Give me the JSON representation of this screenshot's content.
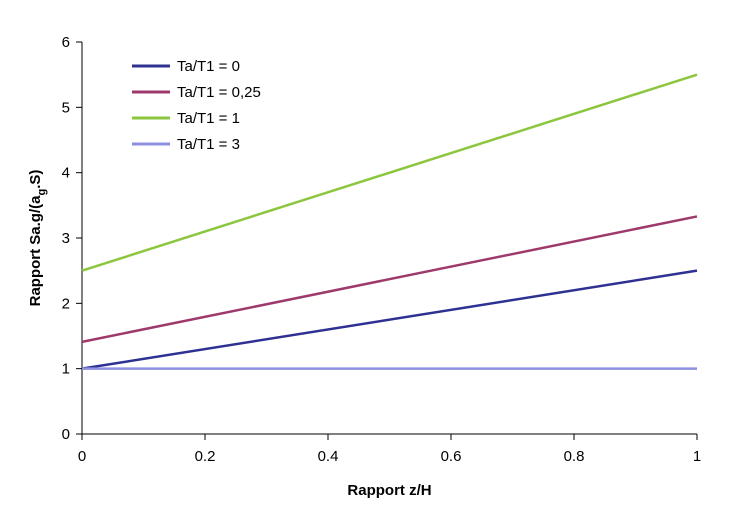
{
  "chart_data": {
    "type": "line",
    "title": "",
    "xlabel": "Rapport z/H",
    "ylabel_parts": {
      "prefix": "Rapport Sa.g/(a",
      "subscript": "g",
      "suffix": ".S)"
    },
    "xlim": [
      0,
      1
    ],
    "ylim": [
      0,
      6
    ],
    "xticks": [
      0,
      0.2,
      0.4,
      0.6,
      0.8,
      1
    ],
    "xtick_labels": [
      "0",
      "0.2",
      "0.4",
      "0.6",
      "0.8",
      "1"
    ],
    "yticks": [
      0,
      1,
      2,
      3,
      4,
      5,
      6
    ],
    "ytick_labels": [
      "0",
      "1",
      "2",
      "3",
      "4",
      "5",
      "6"
    ],
    "grid": false,
    "legend_position": "top-left",
    "series": [
      {
        "name": "Ta/T1 = 0",
        "color": "#2e3192",
        "x": [
          0,
          1
        ],
        "y": [
          1.0,
          2.5
        ]
      },
      {
        "name": "Ta/T1 = 0,25",
        "color": "#9e3a6b",
        "x": [
          0,
          1
        ],
        "y": [
          1.41,
          3.33
        ]
      },
      {
        "name": "Ta/T1 = 1",
        "color": "#8cc63f",
        "x": [
          0,
          1
        ],
        "y": [
          2.5,
          5.5
        ]
      },
      {
        "name": "Ta/T1 = 3",
        "color": "#8c8ee0",
        "x": [
          0,
          1
        ],
        "y": [
          1.0,
          1.0
        ]
      }
    ]
  }
}
